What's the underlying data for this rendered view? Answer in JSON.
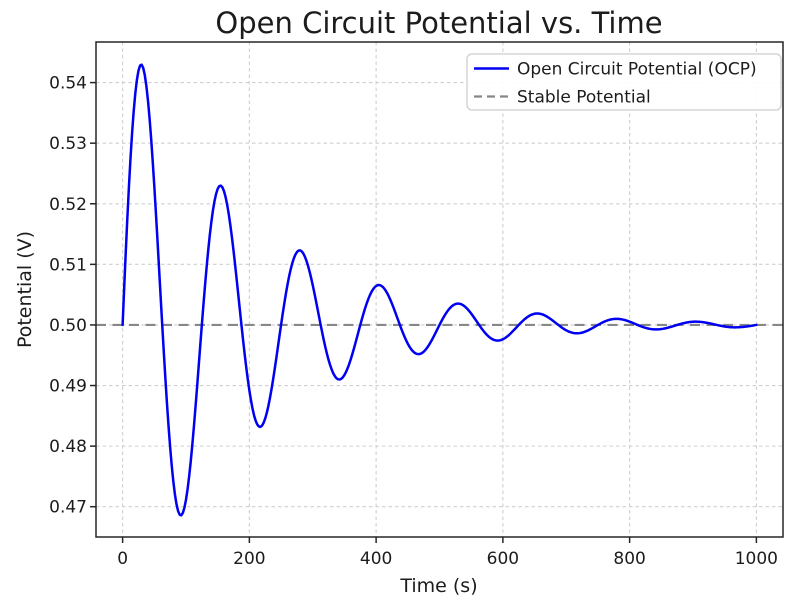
{
  "chart_data": {
    "type": "line",
    "title": "Open Circuit Potential vs. Time",
    "xlabel": "Time (s)",
    "ylabel": "Potential (V)",
    "xlim": [
      -42,
      1042
    ],
    "ylim": [
      0.465,
      0.5467
    ],
    "x_ticks": [
      0,
      200,
      400,
      600,
      800,
      1000
    ],
    "y_ticks": [
      0.47,
      0.48,
      0.49,
      0.5,
      0.51,
      0.52,
      0.53,
      0.54
    ],
    "y_tick_decimals": 2,
    "grid": {
      "visible": true,
      "style": "dashed"
    },
    "legend": {
      "position": "upper right"
    },
    "series": [
      {
        "name": "Open Circuit Potential (OCP)",
        "color": "#0000f2",
        "line_style": "solid",
        "line_width": 2.5,
        "model": {
          "kind": "damped_sine",
          "baseline_V": 0.5,
          "amplitude_V": 0.05,
          "decay_tau_s": 200,
          "period_s": 125,
          "t_start_s": 0,
          "t_end_s": 1000,
          "sample_step_s": 2.5
        },
        "key_points": [
          [
            0,
            0.5
          ],
          [
            29.3,
            0.543
          ],
          [
            91.8,
            0.4686
          ],
          [
            154.3,
            0.523
          ],
          [
            216.8,
            0.4832
          ],
          [
            279.3,
            0.5123
          ],
          [
            341.8,
            0.491
          ],
          [
            404.3,
            0.5066
          ],
          [
            466.8,
            0.4952
          ],
          [
            529.3,
            0.5035
          ],
          [
            591.8,
            0.4974
          ],
          [
            654.3,
            0.5019
          ],
          [
            716.8,
            0.4986
          ],
          [
            779.3,
            0.501
          ],
          [
            841.8,
            0.4993
          ],
          [
            904.3,
            0.5005
          ],
          [
            966.8,
            0.4996
          ],
          [
            1000,
            0.5
          ]
        ]
      },
      {
        "name": "Stable Potential",
        "color": "#878787",
        "line_style": "dashed",
        "line_width": 2.2,
        "dash_pattern": "10 6.5",
        "value_V": 0.5
      }
    ],
    "palette": {
      "background": "#ffffff",
      "grid": "#cfcfcf",
      "spine": "#262626",
      "text": "#1c1c1c",
      "legend_border": "#cccccc"
    }
  }
}
